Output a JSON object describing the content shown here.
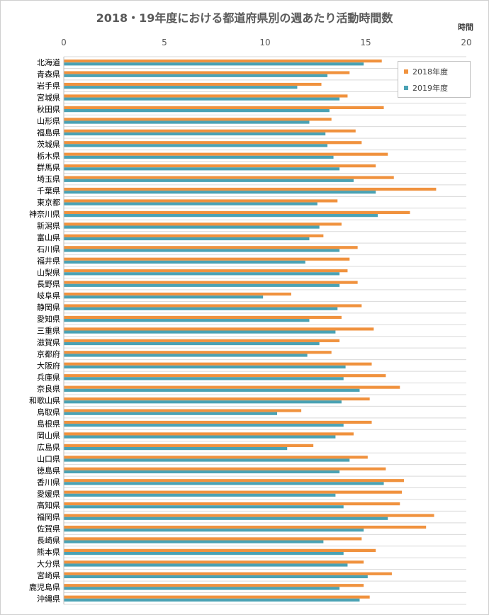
{
  "chart_data": {
    "type": "bar",
    "orientation": "horizontal",
    "title": "2018・19年度における都道府県別の週あたり活動時間数",
    "xlabel": "",
    "ylabel": "",
    "unit_label": "時間",
    "xlim": [
      0,
      20
    ],
    "xticks": [
      0,
      5,
      10,
      15,
      20
    ],
    "grid": "horizontal",
    "legend_position": "top-right",
    "categories": [
      "北海道",
      "青森県",
      "岩手県",
      "宮城県",
      "秋田県",
      "山形県",
      "福島県",
      "茨城県",
      "栃木県",
      "群馬県",
      "埼玉県",
      "千葉県",
      "東京都",
      "神奈川県",
      "新潟県",
      "富山県",
      "石川県",
      "福井県",
      "山梨県",
      "長野県",
      "岐阜県",
      "静岡県",
      "愛知県",
      "三重県",
      "滋賀県",
      "京都府",
      "大阪府",
      "兵庫県",
      "奈良県",
      "和歌山県",
      "鳥取県",
      "島根県",
      "岡山県",
      "広島県",
      "山口県",
      "徳島県",
      "香川県",
      "愛媛県",
      "高知県",
      "福岡県",
      "佐賀県",
      "長崎県",
      "熊本県",
      "大分県",
      "宮崎県",
      "鹿児島県",
      "沖縄県"
    ],
    "series": [
      {
        "name": "2018年度",
        "color": "#f0923e",
        "values": [
          15.8,
          14.2,
          12.8,
          14.1,
          15.9,
          13.3,
          14.5,
          14.8,
          16.1,
          15.5,
          16.4,
          18.5,
          13.6,
          17.2,
          13.8,
          12.9,
          14.6,
          14.2,
          14.1,
          14.6,
          11.3,
          14.8,
          13.8,
          15.4,
          13.7,
          13.3,
          15.3,
          16.0,
          16.7,
          15.2,
          11.8,
          15.3,
          14.4,
          12.4,
          15.1,
          16.0,
          16.9,
          16.8,
          16.7,
          18.4,
          18.0,
          14.8,
          15.5,
          14.9,
          16.3,
          14.9,
          15.2
        ]
      },
      {
        "name": "2019年度",
        "color": "#4aa2b4",
        "values": [
          14.9,
          13.1,
          11.6,
          13.7,
          13.2,
          12.2,
          13.0,
          13.1,
          13.4,
          13.7,
          14.4,
          15.5,
          12.6,
          15.6,
          12.7,
          12.2,
          13.7,
          12.0,
          13.7,
          13.7,
          9.9,
          13.6,
          12.2,
          13.5,
          12.7,
          12.1,
          14.0,
          13.9,
          14.7,
          13.8,
          10.6,
          13.9,
          13.5,
          11.1,
          14.2,
          13.7,
          15.9,
          13.5,
          13.9,
          16.1,
          14.9,
          12.9,
          13.9,
          14.1,
          15.1,
          13.7,
          14.7
        ]
      }
    ]
  }
}
